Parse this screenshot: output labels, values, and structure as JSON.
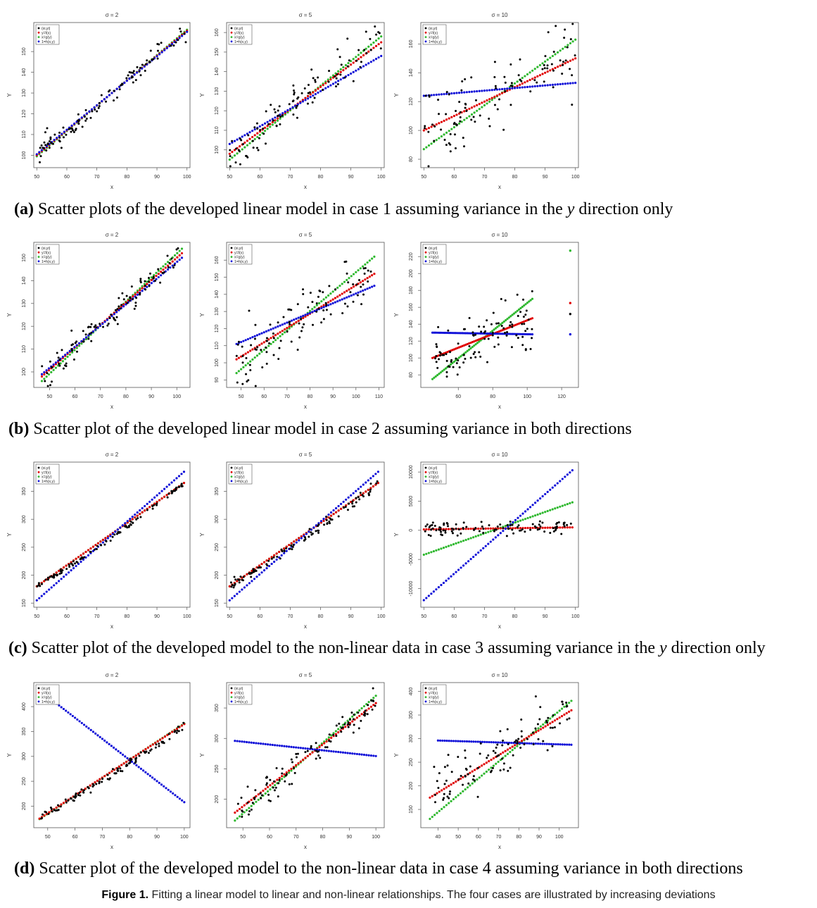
{
  "captions": [
    {
      "label": "(a)",
      "pre": "Scatter plots of the developed linear model in case 1 assuming variance in the",
      "var": "y",
      "post": "direction only"
    },
    {
      "label": "(b)",
      "pre": "Scatter plot of the developed linear model in case 2 assuming variance in both directions",
      "var": "",
      "post": ""
    },
    {
      "label": "(c)",
      "pre": "Scatter plot of the developed model to the non-linear data in case 3 assuming variance in the",
      "var": "y",
      "post": "direction only"
    },
    {
      "label": "(d)",
      "pre": "Scatter plot of the developed model to the non-linear data in case 4 assuming variance in both directions",
      "var": "",
      "post": ""
    }
  ],
  "figure_caption": {
    "label": "Figure 1.",
    "text": "Fitting a linear model to linear and non-linear relationships. The four cases are illustrated by increasing deviations"
  },
  "colors": {
    "points": "#000000",
    "f": "#e00000",
    "g": "#2eb82e",
    "h": "#1010d8"
  },
  "chart_data": [
    {
      "type": "scatter",
      "title": "σ = 2",
      "xlabel": "x",
      "ylabel": "Y",
      "xlim": [
        50,
        100
      ],
      "ylim": [
        96,
        162
      ],
      "xticks": [
        50,
        60,
        70,
        80,
        90,
        100
      ],
      "yticks": [
        100,
        110,
        120,
        130,
        140,
        150
      ],
      "legend": {
        "position": "top-left",
        "entries": [
          "(xi,yi)",
          "y=f(x)",
          "x=g(y)",
          "1=h(x,y)"
        ]
      },
      "lines": {
        "f": [
          [
            50,
            100
          ],
          [
            100,
            160
          ]
        ],
        "g": [
          [
            50,
            99.5
          ],
          [
            100,
            160.5
          ]
        ],
        "h": [
          [
            50,
            100.5
          ],
          [
            100,
            159.5
          ]
        ]
      },
      "scatter": {
        "mode": "linear",
        "seed": 11,
        "n": 100,
        "x0": 50,
        "x1": 100,
        "a": 100,
        "b": 160,
        "noise": 2.5
      }
    },
    {
      "type": "scatter",
      "title": "σ = 5",
      "xlabel": "x",
      "ylabel": "Y",
      "xlim": [
        50,
        100
      ],
      "ylim": [
        93,
        163
      ],
      "xticks": [
        50,
        60,
        70,
        80,
        90,
        100
      ],
      "yticks": [
        100,
        110,
        120,
        130,
        140,
        150,
        160
      ],
      "legend": {
        "position": "top-left",
        "entries": [
          "(xi,yi)",
          "y=f(x)",
          "x=g(y)",
          "1=h(x,y)"
        ]
      },
      "lines": {
        "f": [
          [
            50,
            98
          ],
          [
            100,
            155
          ]
        ],
        "g": [
          [
            50,
            95
          ],
          [
            100,
            158
          ]
        ],
        "h": [
          [
            50,
            103
          ],
          [
            100,
            148
          ]
        ]
      },
      "scatter": {
        "mode": "linear",
        "seed": 12,
        "n": 100,
        "x0": 50,
        "x1": 100,
        "a": 97,
        "b": 157,
        "noise": 6
      }
    },
    {
      "type": "scatter",
      "title": "σ = 10",
      "xlabel": "x",
      "ylabel": "Y",
      "xlim": [
        50,
        100
      ],
      "ylim": [
        77,
        172
      ],
      "xticks": [
        50,
        60,
        70,
        80,
        90,
        100
      ],
      "yticks": [
        80,
        100,
        120,
        140,
        160
      ],
      "legend": {
        "position": "top-left",
        "entries": [
          "(xi,yi)",
          "y=f(x)",
          "x=g(y)",
          "1=h(x,y)"
        ]
      },
      "lines": {
        "f": [
          [
            50,
            100
          ],
          [
            100,
            150
          ]
        ],
        "g": [
          [
            50,
            87
          ],
          [
            100,
            163
          ]
        ],
        "h": [
          [
            50,
            124
          ],
          [
            100,
            133
          ]
        ]
      },
      "scatter": {
        "mode": "linear",
        "seed": 13,
        "n": 100,
        "x0": 50,
        "x1": 100,
        "a": 100,
        "b": 150,
        "noise": 13
      }
    },
    {
      "type": "scatter",
      "title": "σ = 2",
      "xlabel": "x",
      "ylabel": "Y",
      "xlim": [
        45,
        104
      ],
      "ylim": [
        95,
        155
      ],
      "xticks": [
        50,
        60,
        70,
        80,
        90,
        100
      ],
      "yticks": [
        100,
        110,
        120,
        130,
        140,
        150
      ],
      "legend": {
        "position": "top-left",
        "entries": [
          "(xi,yi)",
          "y=f(x)",
          "x=g(y)",
          "1=h(x,y)"
        ]
      },
      "lines": {
        "f": [
          [
            47,
            98
          ],
          [
            102,
            152
          ]
        ],
        "g": [
          [
            47,
            96
          ],
          [
            102,
            154
          ]
        ],
        "h": [
          [
            47,
            99
          ],
          [
            102,
            150
          ]
        ]
      },
      "scatter": {
        "mode": "linear",
        "seed": 21,
        "n": 100,
        "x0": 47,
        "x1": 101,
        "a": 98,
        "b": 151,
        "noise": 3
      }
    },
    {
      "type": "scatter",
      "title": "σ = 5",
      "xlabel": "x",
      "ylabel": "Y",
      "xlim": [
        45,
        111
      ],
      "ylim": [
        88,
        168
      ],
      "xticks": [
        50,
        60,
        70,
        80,
        90,
        100,
        110
      ],
      "yticks": [
        90,
        100,
        110,
        120,
        130,
        140,
        150,
        160
      ],
      "legend": {
        "position": "top-left",
        "entries": [
          "(xi,yi)",
          "y=f(x)",
          "x=g(y)",
          "1=h(x,y)"
        ]
      },
      "lines": {
        "f": [
          [
            48,
            102
          ],
          [
            108,
            152
          ]
        ],
        "g": [
          [
            48,
            94
          ],
          [
            108,
            162
          ]
        ],
        "h": [
          [
            48,
            111
          ],
          [
            108,
            145
          ]
        ]
      },
      "scatter": {
        "mode": "linear",
        "seed": 22,
        "n": 100,
        "x0": 48,
        "x1": 108,
        "a": 100,
        "b": 152,
        "noise": 8
      }
    },
    {
      "type": "scatter",
      "title": "σ = 10",
      "xlabel": "x",
      "ylabel": "Y",
      "xlim": [
        40,
        128
      ],
      "ylim": [
        70,
        232
      ],
      "xticks": [
        60,
        80,
        100,
        120
      ],
      "yticks": [
        80,
        100,
        120,
        140,
        160,
        180,
        200,
        220
      ],
      "legend": {
        "position": "top-left",
        "entries": [
          "(xi,yi)",
          "y=f(x)",
          "x=g(y)",
          "1=h(x,y)"
        ]
      },
      "lines": {
        "f": [
          [
            45,
            100
          ],
          [
            103,
            147
          ]
        ],
        "g": [
          [
            45,
            75
          ],
          [
            103,
            170
          ]
        ],
        "h": [
          [
            45,
            130
          ],
          [
            103,
            128
          ]
        ]
      },
      "outliers": [
        {
          "x": 125,
          "f": 165,
          "g": 227,
          "h": 128,
          "p": 152
        }
      ],
      "scatter": {
        "mode": "linear",
        "seed": 23,
        "n": 100,
        "x0": 45,
        "x1": 103,
        "a": 103,
        "b": 145,
        "noise": 15
      }
    },
    {
      "type": "scatter",
      "title": "σ = 2",
      "xlabel": "x",
      "ylabel": "Y",
      "xlim": [
        50,
        100
      ],
      "ylim": [
        150,
        395
      ],
      "xticks": [
        50,
        60,
        70,
        80,
        90,
        100
      ],
      "yticks": [
        150,
        200,
        250,
        300,
        350
      ],
      "legend": {
        "position": "top-left",
        "entries": [
          "(xi,yi)",
          "y=f(x)",
          "x=g(y)",
          "1=h(x,y)"
        ]
      },
      "lines": {
        "f": [
          [
            50,
            180
          ],
          [
            99,
            365
          ]
        ],
        "g": [
          [
            50,
            180
          ],
          [
            99,
            365
          ]
        ],
        "h": [
          [
            50,
            155
          ],
          [
            99,
            385
          ]
        ]
      },
      "scatter": {
        "mode": "quadratic",
        "seed": 31,
        "n": 100,
        "x0": 50,
        "x1": 99,
        "a": 180,
        "b": 365,
        "noise": 2
      }
    },
    {
      "type": "scatter",
      "title": "σ = 5",
      "xlabel": "x",
      "ylabel": "Y",
      "xlim": [
        50,
        100
      ],
      "ylim": [
        150,
        395
      ],
      "xticks": [
        50,
        60,
        70,
        80,
        90,
        100
      ],
      "yticks": [
        150,
        200,
        250,
        300,
        350
      ],
      "legend": {
        "position": "top-left",
        "entries": [
          "(xi,yi)",
          "y=f(x)",
          "x=g(y)",
          "1=h(x,y)"
        ]
      },
      "lines": {
        "f": [
          [
            50,
            180
          ],
          [
            99,
            365
          ]
        ],
        "g": [
          [
            50,
            180
          ],
          [
            99,
            365
          ]
        ],
        "h": [
          [
            50,
            155
          ],
          [
            99,
            385
          ]
        ]
      },
      "scatter": {
        "mode": "quadratic",
        "seed": 32,
        "n": 100,
        "x0": 50,
        "x1": 99,
        "a": 180,
        "b": 365,
        "noise": 5
      }
    },
    {
      "type": "scatter",
      "title": "σ = 10",
      "xlabel": "x",
      "ylabel": "Y",
      "xlim": [
        50,
        100
      ],
      "ylim": [
        -12500,
        11000
      ],
      "xticks": [
        50,
        60,
        70,
        80,
        90,
        100
      ],
      "yticks": [
        -10000,
        -5000,
        0,
        5000,
        10000
      ],
      "legend": {
        "position": "top-left",
        "entries": [
          "(xi,yi)",
          "y=f(x)",
          "x=g(y)",
          "1=h(x,y)"
        ]
      },
      "lines": {
        "f": [
          [
            50,
            150
          ],
          [
            99,
            500
          ]
        ],
        "g": [
          [
            50,
            -4200
          ],
          [
            99,
            4800
          ]
        ],
        "h": [
          [
            50,
            -12000
          ],
          [
            99,
            10300
          ]
        ]
      },
      "scatter": {
        "mode": "flat",
        "seed": 33,
        "n": 100,
        "x0": 50,
        "x1": 99,
        "a": 200,
        "b": 500,
        "noise": 600
      }
    },
    {
      "type": "scatter",
      "title": "σ = 2",
      "xlabel": "x",
      "ylabel": "Y",
      "xlim": [
        46,
        101
      ],
      "ylim": [
        165,
        440
      ],
      "xticks": [
        50,
        60,
        70,
        80,
        90,
        100
      ],
      "yticks": [
        200,
        250,
        300,
        350,
        400
      ],
      "legend": {
        "position": "top-left",
        "entries": [
          "(xi,yi)",
          "y=f(x)",
          "x=g(y)",
          "1=h(x,y)"
        ]
      },
      "lines": {
        "f": [
          [
            47,
            175
          ],
          [
            100,
            365
          ]
        ],
        "g": [
          [
            47,
            174
          ],
          [
            100,
            366
          ]
        ],
        "h": [
          [
            50,
            420
          ],
          [
            100,
            208
          ]
        ]
      },
      "scatter": {
        "mode": "quadratic",
        "seed": 41,
        "n": 100,
        "x0": 47,
        "x1": 100,
        "a": 178,
        "b": 362,
        "noise": 4
      }
    },
    {
      "type": "scatter",
      "title": "σ = 5",
      "xlabel": "x",
      "ylabel": "Y",
      "xlim": [
        45,
        102
      ],
      "ylim": [
        160,
        385
      ],
      "xticks": [
        50,
        60,
        70,
        80,
        90,
        100
      ],
      "yticks": [
        200,
        250,
        300,
        350
      ],
      "legend": {
        "position": "top-left",
        "entries": [
          "(xi,yi)",
          "y=f(x)",
          "x=g(y)",
          "1=h(x,y)"
        ]
      },
      "lines": {
        "f": [
          [
            47,
            178
          ],
          [
            100,
            358
          ]
        ],
        "g": [
          [
            47,
            165
          ],
          [
            100,
            370
          ]
        ],
        "h": [
          [
            47,
            296
          ],
          [
            100,
            271
          ]
        ]
      },
      "scatter": {
        "mode": "quadratic",
        "seed": 42,
        "n": 100,
        "x0": 47,
        "x1": 100,
        "a": 182,
        "b": 362,
        "noise": 13
      }
    },
    {
      "type": "scatter",
      "title": "σ = 10",
      "xlabel": "x",
      "ylabel": "Y",
      "xlim": [
        33,
        108
      ],
      "ylim": [
        120,
        410
      ],
      "xticks": [
        40,
        50,
        60,
        70,
        80,
        90,
        100
      ],
      "yticks": [
        150,
        200,
        250,
        300,
        350,
        400
      ],
      "legend": {
        "position": "top-left",
        "entries": [
          "(xi,yi)",
          "y=f(x)",
          "x=g(y)",
          "1=h(x,y)"
        ]
      },
      "lines": {
        "f": [
          [
            36,
            175
          ],
          [
            106,
            360
          ]
        ],
        "g": [
          [
            36,
            130
          ],
          [
            106,
            380
          ]
        ],
        "h": [
          [
            40,
            296
          ],
          [
            106,
            287
          ]
        ]
      },
      "scatter": {
        "mode": "quadratic",
        "seed": 43,
        "n": 100,
        "x0": 36,
        "x1": 105,
        "a": 185,
        "b": 362,
        "noise": 28
      }
    }
  ]
}
